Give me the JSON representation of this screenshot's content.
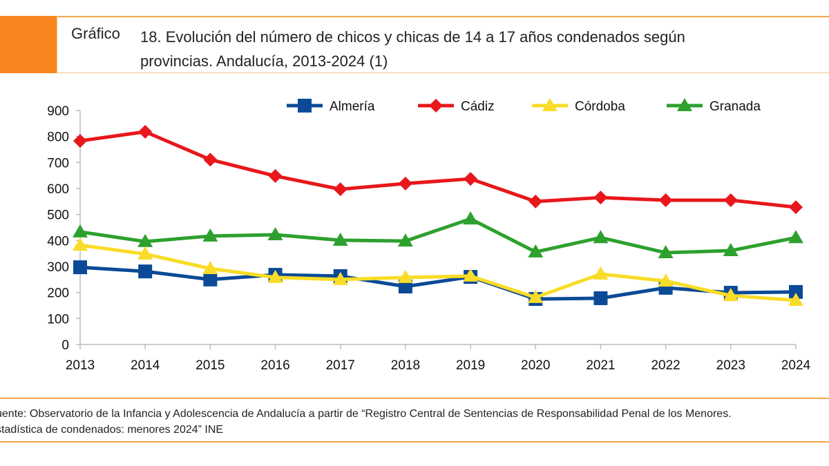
{
  "header": {
    "label": "Gráfico",
    "title_line1": "18. Evolución del número de chicos y chicas de 14 a 17 años condenados según",
    "title_line2": "provincias. Andalucía, 2013-2024 (1)"
  },
  "chart_data": {
    "type": "line",
    "title": "18. Evolución del número de chicos y chicas de 14 a 17 años condenados según provincias. Andalucía, 2013-2024 (1)",
    "categories": [
      "2013",
      "2014",
      "2015",
      "2016",
      "2017",
      "2018",
      "2019",
      "2020",
      "2021",
      "2022",
      "2023",
      "2024"
    ],
    "ylim": [
      0,
      900
    ],
    "yticks": [
      "0",
      "100",
      "200",
      "300",
      "400",
      "500",
      "600",
      "700",
      "800",
      "900"
    ],
    "grid": false,
    "legend": "top",
    "series": [
      {
        "name": "Almería",
        "color": "#0b4a96",
        "marker": "square",
        "values": [
          297,
          281,
          250,
          268,
          263,
          223,
          260,
          175,
          178,
          218,
          199,
          202
        ]
      },
      {
        "name": "Cádiz",
        "color": "#e8171b",
        "marker": "diamond",
        "values": [
          783,
          818,
          711,
          648,
          597,
          619,
          637,
          550,
          565,
          555,
          555,
          528
        ]
      },
      {
        "name": "Córdoba",
        "color": "#f9dc27",
        "marker": "triangle",
        "values": [
          382,
          348,
          292,
          258,
          250,
          258,
          263,
          181,
          271,
          244,
          188,
          170
        ]
      },
      {
        "name": "Granada",
        "color": "#2ea02e",
        "marker": "triangle",
        "values": [
          433,
          396,
          417,
          422,
          401,
          398,
          483,
          356,
          411,
          353,
          361,
          411
        ]
      }
    ]
  },
  "footer": {
    "line1": "uente: Observatorio de la Infancia y Adolescencia de Andalucía a partir de “Registro Central de Sentencias de Responsabilidad Penal de los Menores.",
    "line2": "stadística de condenados: menores 2024” INE"
  }
}
